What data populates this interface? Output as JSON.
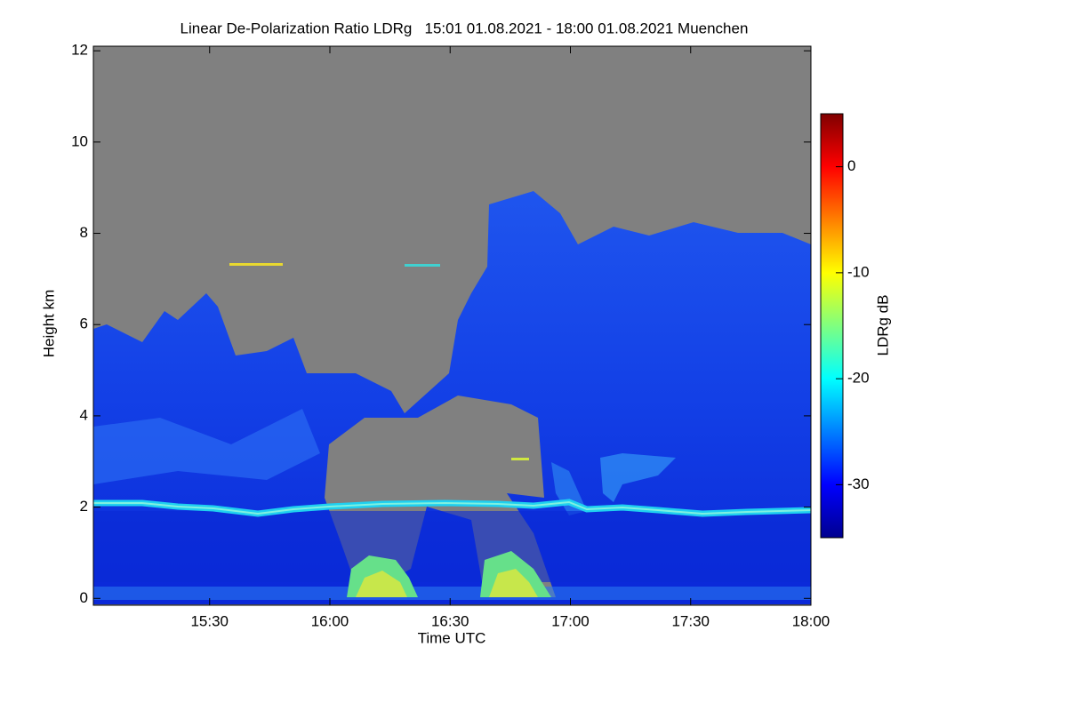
{
  "chart_data": {
    "type": "heatmap",
    "title": "Linear De-Polarization Ratio LDRg   15:01 01.08.2021 - 18:00 01.08.2021 Muenchen",
    "xlabel": "Time UTC",
    "ylabel": "Height km",
    "colorbar_label": "LDRg dB",
    "xlim": [
      15.0167,
      18.0
    ],
    "xticks": [
      {
        "value": 15.5,
        "label": "15:30"
      },
      {
        "value": 16.0,
        "label": "16:00"
      },
      {
        "value": 16.5,
        "label": "16:30"
      },
      {
        "value": 17.0,
        "label": "17:00"
      },
      {
        "value": 17.5,
        "label": "17:30"
      },
      {
        "value": 18.0,
        "label": "18:00"
      }
    ],
    "ylim": [
      -0.15,
      12.1
    ],
    "yticks": [
      0,
      2,
      4,
      6,
      8,
      10,
      12
    ],
    "clim": [
      -35,
      5
    ],
    "cticks": [
      -30,
      -20,
      -10,
      0
    ],
    "colormap": "jet"
  }
}
